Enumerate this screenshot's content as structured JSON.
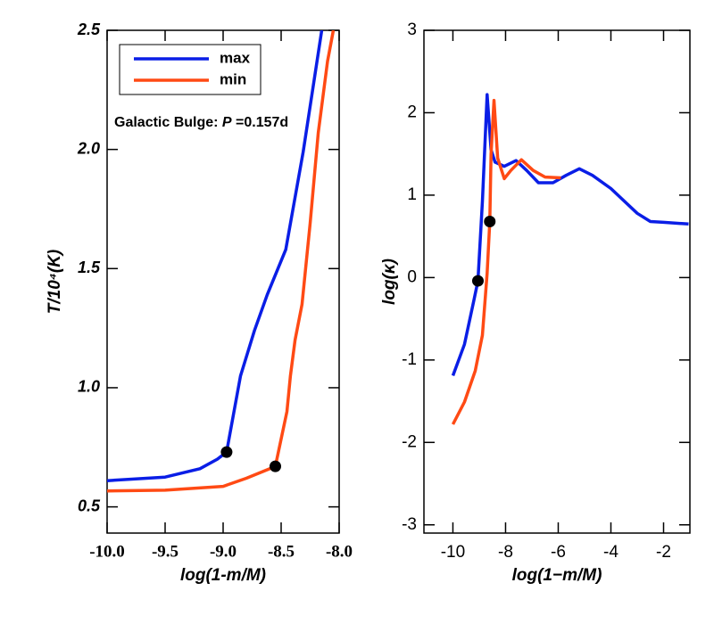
{
  "chart_data": [
    {
      "type": "line",
      "xlabel": "log(1-m/M)",
      "ylabel": "T/10⁴(K)",
      "annotation": [
        "Galactic Bulge: ",
        "P",
        " =0.157d"
      ],
      "legend": "upper left",
      "xlim": [
        -10,
        -8
      ],
      "ylim": [
        0.39,
        2.5
      ],
      "xticks": [
        {
          "value": -10,
          "label": "-10.0"
        },
        -9.5,
        {
          "value": -9,
          "label": "-9.0"
        },
        -8.5,
        {
          "value": -8,
          "label": "-8.0"
        }
      ],
      "yticks": [
        0.5,
        {
          "value": 1,
          "label": "1.0"
        },
        1.5,
        {
          "value": 2,
          "label": "2.0"
        },
        2.5
      ],
      "series": [
        {
          "name": "max",
          "color": "#0a1ee6",
          "x": [
            -10,
            -9.5,
            -9.2,
            -9.05,
            -8.97,
            -8.85,
            -8.73,
            -8.62,
            -8.46,
            -8.31,
            -8.15
          ],
          "y": [
            0.61,
            0.625,
            0.66,
            0.7,
            0.73,
            1.05,
            1.24,
            1.39,
            1.58,
            1.99,
            2.5
          ]
        },
        {
          "name": "min",
          "color": "#ff4a14",
          "x": [
            -10,
            -9.5,
            -9.0,
            -8.8,
            -8.55,
            -8.45,
            -8.42,
            -8.38,
            -8.32,
            -8.25,
            -8.18,
            -8.1,
            -8.05
          ],
          "y": [
            0.567,
            0.57,
            0.586,
            0.62,
            0.67,
            0.9,
            1.05,
            1.2,
            1.35,
            1.69,
            2.07,
            2.37,
            2.5
          ]
        }
      ],
      "points": {
        "color": "#000000",
        "x": [
          -8.97,
          -8.55
        ],
        "y": [
          0.73,
          0.67
        ]
      }
    },
    {
      "type": "line",
      "xlabel": "log(1−m/M)",
      "ylabel": "log(κ)",
      "xlim": [
        -11.1,
        -1
      ],
      "ylim": [
        -3.1,
        3
      ],
      "xticks": [
        -10,
        -8,
        -6,
        -4,
        -2
      ],
      "yticks": [
        -3,
        -2,
        -1,
        0,
        1,
        2,
        3
      ],
      "series": [
        {
          "name": "max",
          "color": "#0a1ee6",
          "x": [
            -10,
            -9.56,
            -9.2,
            -9.05,
            -8.88,
            -8.7,
            -8.55,
            -8.4,
            -8.05,
            -7.6,
            -7.2,
            -6.75,
            -6.2,
            -5.7,
            -5.2,
            -4.7,
            -4.0,
            -3.5,
            -3.0,
            -2.5,
            -2.0,
            -1.05
          ],
          "y": [
            -1.19,
            -0.81,
            -0.27,
            -0.04,
            0.92,
            2.22,
            1.55,
            1.4,
            1.35,
            1.42,
            1.3,
            1.15,
            1.15,
            1.24,
            1.32,
            1.24,
            1.08,
            0.93,
            0.78,
            0.68,
            0.67,
            0.65
          ]
        },
        {
          "name": "min",
          "color": "#ff4a14",
          "x": [
            -10,
            -9.56,
            -9.15,
            -8.88,
            -8.7,
            -8.6,
            -8.55,
            -8.44,
            -8.3,
            -8.05,
            -7.8,
            -7.4,
            -6.95,
            -6.5,
            -5.9
          ],
          "y": [
            -1.78,
            -1.51,
            -1.13,
            -0.7,
            0.05,
            0.68,
            1.5,
            2.15,
            1.45,
            1.2,
            1.3,
            1.43,
            1.3,
            1.22,
            1.21
          ]
        }
      ],
      "points": {
        "color": "#000000",
        "x": [
          -9.05,
          -8.6
        ],
        "y": [
          -0.04,
          0.68
        ]
      }
    }
  ]
}
